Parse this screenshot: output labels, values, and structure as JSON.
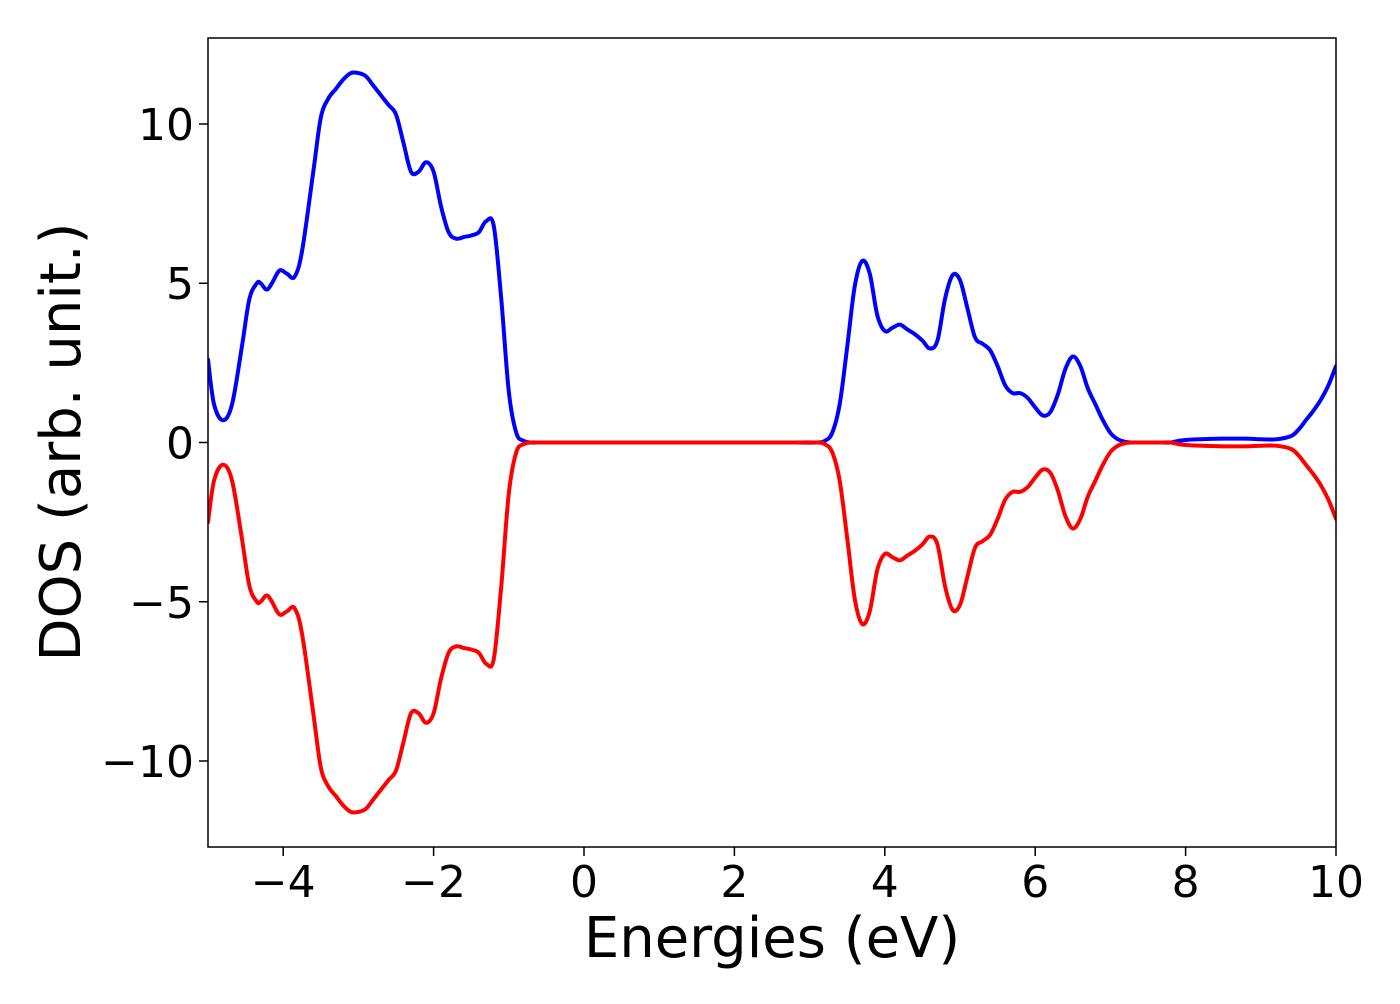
{
  "chart_data": {
    "type": "line",
    "title": "",
    "xlabel": "Energies (eV)",
    "ylabel": "DOS (arb. unit.)",
    "xlim": [
      -5,
      10
    ],
    "ylim": [
      -12.7,
      12.7
    ],
    "xticks": [
      -4,
      -2,
      0,
      2,
      4,
      6,
      8,
      10
    ],
    "xtick_labels": [
      "−4",
      "−2",
      "0",
      "2",
      "4",
      "6",
      "8",
      "10"
    ],
    "yticks": [
      -10,
      -5,
      0,
      5,
      10
    ],
    "ytick_labels": [
      "−10",
      "−5",
      "0",
      "5",
      "10"
    ],
    "grid": false,
    "legend": "none",
    "series": [
      {
        "color": "#0000ff",
        "x": [
          -5.0,
          -4.92,
          -4.8,
          -4.68,
          -4.55,
          -4.45,
          -4.35,
          -4.3,
          -4.22,
          -4.15,
          -4.05,
          -3.95,
          -3.85,
          -3.75,
          -3.6,
          -3.5,
          -3.4,
          -3.3,
          -3.2,
          -3.1,
          -3.0,
          -2.9,
          -2.8,
          -2.7,
          -2.6,
          -2.5,
          -2.4,
          -2.3,
          -2.2,
          -2.1,
          -2.0,
          -1.9,
          -1.8,
          -1.7,
          -1.6,
          -1.5,
          -1.4,
          -1.3,
          -1.2,
          -1.1,
          -1.0,
          -0.9,
          -0.8,
          -0.7,
          -0.6,
          -0.5,
          0.0,
          1.0,
          2.0,
          2.8,
          3.1,
          3.2,
          3.3,
          3.4,
          3.5,
          3.6,
          3.7,
          3.8,
          3.9,
          4.0,
          4.1,
          4.2,
          4.3,
          4.4,
          4.5,
          4.6,
          4.7,
          4.8,
          4.9,
          5.0,
          5.1,
          5.2,
          5.3,
          5.4,
          5.5,
          5.6,
          5.7,
          5.8,
          5.9,
          6.0,
          6.1,
          6.2,
          6.3,
          6.4,
          6.5,
          6.6,
          6.7,
          6.8,
          6.9,
          7.0,
          7.1,
          7.2,
          7.3,
          7.4,
          7.5,
          7.6,
          7.7,
          7.8,
          8.0,
          8.5,
          8.8,
          9.0,
          9.2,
          9.4,
          9.5,
          9.6,
          9.7,
          9.8,
          9.9,
          10.0
        ],
        "y": [
          2.6,
          1.2,
          0.7,
          1.2,
          3.0,
          4.5,
          5.0,
          5.0,
          4.8,
          5.0,
          5.4,
          5.3,
          5.2,
          6.0,
          8.5,
          10.2,
          10.8,
          11.1,
          11.4,
          11.6,
          11.6,
          11.5,
          11.2,
          10.9,
          10.6,
          10.3,
          9.4,
          8.5,
          8.5,
          8.8,
          8.5,
          7.4,
          6.6,
          6.4,
          6.45,
          6.5,
          6.6,
          6.95,
          6.8,
          4.5,
          1.6,
          0.3,
          0.05,
          0.0,
          0.0,
          0.0,
          0.0,
          0.0,
          0.0,
          0.0,
          0.0,
          0.05,
          0.3,
          1.2,
          3.0,
          4.9,
          5.7,
          5.3,
          4.0,
          3.5,
          3.6,
          3.7,
          3.55,
          3.4,
          3.2,
          2.95,
          3.2,
          4.5,
          5.25,
          5.1,
          4.2,
          3.3,
          3.1,
          2.9,
          2.4,
          1.8,
          1.55,
          1.55,
          1.4,
          1.1,
          0.85,
          0.95,
          1.5,
          2.3,
          2.7,
          2.4,
          1.7,
          1.2,
          0.7,
          0.3,
          0.1,
          0.02,
          0.0,
          0.0,
          0.0,
          0.0,
          0.0,
          0.0,
          0.08,
          0.12,
          0.12,
          0.1,
          0.1,
          0.2,
          0.4,
          0.7,
          1.0,
          1.35,
          1.8,
          2.4
        ]
      },
      {
        "color": "#ff0000",
        "x": [
          -5.0,
          -4.92,
          -4.8,
          -4.68,
          -4.55,
          -4.45,
          -4.35,
          -4.3,
          -4.22,
          -4.15,
          -4.05,
          -3.95,
          -3.85,
          -3.75,
          -3.6,
          -3.5,
          -3.4,
          -3.3,
          -3.2,
          -3.1,
          -3.0,
          -2.9,
          -2.8,
          -2.7,
          -2.6,
          -2.5,
          -2.4,
          -2.3,
          -2.2,
          -2.1,
          -2.0,
          -1.9,
          -1.8,
          -1.7,
          -1.6,
          -1.5,
          -1.4,
          -1.3,
          -1.2,
          -1.1,
          -1.0,
          -0.9,
          -0.8,
          -0.7,
          -0.6,
          -0.5,
          0.0,
          1.0,
          2.0,
          2.8,
          3.1,
          3.2,
          3.3,
          3.4,
          3.5,
          3.6,
          3.7,
          3.8,
          3.9,
          4.0,
          4.1,
          4.2,
          4.3,
          4.4,
          4.5,
          4.6,
          4.7,
          4.8,
          4.9,
          5.0,
          5.1,
          5.2,
          5.3,
          5.4,
          5.5,
          5.6,
          5.7,
          5.8,
          5.9,
          6.0,
          6.1,
          6.2,
          6.3,
          6.4,
          6.5,
          6.6,
          6.7,
          6.8,
          6.9,
          7.0,
          7.1,
          7.2,
          7.3,
          7.4,
          7.5,
          7.6,
          7.7,
          7.8,
          8.0,
          8.5,
          8.8,
          9.0,
          9.2,
          9.4,
          9.5,
          9.6,
          9.7,
          9.8,
          9.9,
          10.0
        ],
        "y": [
          -2.5,
          -1.2,
          -0.7,
          -1.2,
          -3.0,
          -4.5,
          -5.0,
          -5.0,
          -4.8,
          -5.0,
          -5.4,
          -5.3,
          -5.2,
          -6.0,
          -8.5,
          -10.2,
          -10.8,
          -11.1,
          -11.4,
          -11.6,
          -11.6,
          -11.5,
          -11.2,
          -10.9,
          -10.6,
          -10.3,
          -9.4,
          -8.5,
          -8.5,
          -8.8,
          -8.5,
          -7.4,
          -6.6,
          -6.4,
          -6.45,
          -6.5,
          -6.6,
          -6.95,
          -6.8,
          -4.5,
          -1.6,
          -0.3,
          -0.05,
          0.0,
          0.0,
          0.0,
          0.0,
          0.0,
          0.0,
          0.0,
          0.0,
          -0.05,
          -0.3,
          -1.2,
          -3.0,
          -4.9,
          -5.7,
          -5.3,
          -4.0,
          -3.5,
          -3.6,
          -3.7,
          -3.55,
          -3.4,
          -3.2,
          -2.95,
          -3.2,
          -4.5,
          -5.25,
          -5.1,
          -4.2,
          -3.3,
          -3.1,
          -2.9,
          -2.4,
          -1.8,
          -1.55,
          -1.55,
          -1.4,
          -1.1,
          -0.85,
          -0.95,
          -1.5,
          -2.3,
          -2.7,
          -2.4,
          -1.7,
          -1.2,
          -0.7,
          -0.3,
          -0.1,
          -0.02,
          0.0,
          0.0,
          0.0,
          0.0,
          0.0,
          0.0,
          -0.08,
          -0.12,
          -0.12,
          -0.1,
          -0.1,
          -0.2,
          -0.4,
          -0.7,
          -1.0,
          -1.35,
          -1.8,
          -2.4
        ]
      }
    ]
  }
}
